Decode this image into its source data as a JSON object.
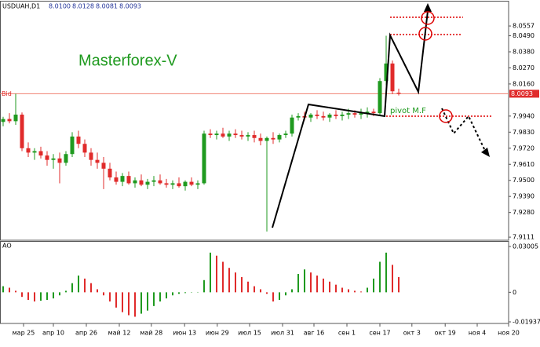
{
  "chart_data": [
    {
      "type": "candlestick",
      "symbol": "USDUAH,D1",
      "header_values": [
        "8.0100",
        "8.0128",
        "8.0081",
        "8.0093"
      ],
      "title": "Masterforex-V",
      "annotation": "pivot M.F",
      "bid_text": "Bid",
      "bid": {
        "value": 8.0093,
        "label": "8.0093"
      },
      "up_color": "#1f9a1f",
      "down_color": "#e02b2b",
      "xlim": [
        0,
        81
      ],
      "ylim": [
        7.909,
        8.0724
      ],
      "yticks": [
        8.0557,
        {
          "value": 8.049,
          "label": "8.0490"
        },
        {
          "value": 8.038,
          "label": "8.0380"
        },
        {
          "value": 8.027,
          "label": "8.0270"
        },
        {
          "value": 8.016,
          "label": "8.0160"
        },
        {
          "value": 7.994,
          "label": "7.9940"
        },
        {
          "value": 7.983,
          "label": "7.9830"
        },
        {
          "value": 7.972,
          "label": "7.9720"
        },
        {
          "value": 7.961,
          "label": "7.9610"
        },
        {
          "value": 7.95,
          "label": "7.9500"
        },
        {
          "value": 7.939,
          "label": "7.9390"
        },
        {
          "value": 7.928,
          "label": "7.9280"
        },
        7.9111
      ],
      "values": [
        [
          7.99,
          7.9935,
          7.987,
          7.992
        ],
        [
          7.992,
          7.996,
          7.989,
          7.9905
        ],
        [
          7.9905,
          8.0093,
          7.988,
          7.995
        ],
        [
          7.995,
          7.9965,
          7.97,
          7.972
        ],
        [
          7.972,
          7.976,
          7.966,
          7.969
        ],
        [
          7.969,
          7.972,
          7.964,
          7.97
        ],
        [
          7.97,
          7.973,
          7.965,
          7.967
        ],
        [
          7.967,
          7.97,
          7.96,
          7.964
        ],
        [
          7.964,
          7.968,
          7.958,
          7.965
        ],
        [
          7.965,
          7.969,
          7.948,
          7.962
        ],
        [
          7.962,
          7.97,
          7.96,
          7.968
        ],
        [
          7.968,
          7.983,
          7.966,
          7.98
        ],
        [
          7.98,
          7.984,
          7.972,
          7.975
        ],
        [
          7.975,
          7.978,
          7.966,
          7.969
        ],
        [
          7.969,
          7.972,
          7.96,
          7.964
        ],
        [
          7.964,
          7.969,
          7.958,
          7.962
        ],
        [
          7.962,
          7.966,
          7.944,
          7.958
        ],
        [
          7.958,
          7.962,
          7.95,
          7.952
        ],
        [
          7.952,
          7.956,
          7.947,
          7.949
        ],
        [
          7.949,
          7.955,
          7.946,
          7.953
        ],
        [
          7.953,
          7.956,
          7.947,
          7.948
        ],
        [
          7.948,
          7.952,
          7.945,
          7.95
        ],
        [
          7.95,
          7.954,
          7.946,
          7.947
        ],
        [
          7.947,
          7.951,
          7.944,
          7.949
        ],
        [
          7.949,
          7.953,
          7.946,
          7.95
        ],
        [
          7.95,
          7.954,
          7.947,
          7.948
        ],
        [
          7.948,
          7.951,
          7.945,
          7.947
        ],
        [
          7.947,
          7.95,
          7.944,
          7.948
        ],
        [
          7.948,
          7.952,
          7.945,
          7.946
        ],
        [
          7.946,
          7.95,
          7.943,
          7.949
        ],
        [
          7.949,
          7.952,
          7.946,
          7.947
        ],
        [
          7.947,
          7.95,
          7.944,
          7.948
        ],
        [
          7.948,
          7.984,
          7.947,
          7.982
        ],
        [
          7.982,
          7.985,
          7.979,
          7.981
        ],
        [
          7.981,
          7.984,
          7.978,
          7.982
        ],
        [
          7.982,
          7.986,
          7.979,
          7.98
        ],
        [
          7.98,
          7.984,
          7.977,
          7.982
        ],
        [
          7.982,
          7.985,
          7.979,
          7.981
        ],
        [
          7.981,
          7.984,
          7.978,
          7.98
        ],
        [
          7.98,
          7.983,
          7.977,
          7.981
        ],
        [
          7.981,
          7.984,
          7.976,
          7.979
        ],
        [
          7.979,
          7.982,
          7.974,
          7.977
        ],
        [
          7.977,
          7.98,
          7.915,
          7.979
        ],
        [
          7.979,
          7.983,
          7.975,
          7.978
        ],
        [
          7.978,
          7.982,
          7.976,
          7.981
        ],
        [
          7.981,
          7.984,
          7.979,
          7.982
        ],
        [
          7.982,
          7.995,
          7.98,
          7.993
        ],
        [
          7.993,
          7.996,
          7.991,
          7.994
        ],
        [
          7.994,
          7.997,
          7.991,
          7.993
        ],
        [
          7.993,
          7.996,
          7.99,
          7.995
        ],
        [
          7.995,
          7.998,
          7.992,
          7.994
        ],
        [
          7.994,
          7.997,
          7.991,
          7.993
        ],
        [
          7.993,
          7.996,
          7.99,
          7.995
        ],
        [
          7.995,
          7.998,
          7.992,
          7.994
        ],
        [
          7.994,
          7.997,
          7.991,
          7.995
        ],
        [
          7.995,
          7.999,
          7.992,
          7.996
        ],
        [
          7.996,
          7.998,
          7.993,
          7.995
        ],
        [
          7.995,
          7.999,
          7.992,
          7.996
        ],
        [
          7.996,
          8.0,
          7.993,
          7.997
        ],
        [
          7.997,
          7.999,
          7.994,
          7.996
        ],
        [
          7.996,
          8.02,
          7.994,
          8.018
        ],
        [
          8.018,
          8.049,
          8.015,
          8.03
        ],
        [
          8.03,
          8.032,
          8.009,
          8.011
        ],
        [
          8.01,
          8.0128,
          8.0081,
          8.0093
        ]
      ]
    },
    {
      "type": "histogram-ao",
      "title": "AO",
      "up_color": "#1f9a1f",
      "down_color": "#e02b2b",
      "xlim": [
        0,
        81
      ],
      "ylim": [
        -0.0204,
        0.0331
      ],
      "yticks": [
        0.03005,
        0,
        -0.01937
      ],
      "xticks": [
        {
          "value": 3.75,
          "label": "мар 25"
        },
        {
          "value": 8.5,
          "label": "апр 10"
        },
        {
          "value": 13.75,
          "label": "апр 26"
        },
        {
          "value": 19,
          "label": "май 12"
        },
        {
          "value": 24.1,
          "label": "май 28"
        },
        {
          "value": 29.4,
          "label": "июн 13"
        },
        {
          "value": 34.6,
          "label": "июн 29"
        },
        {
          "value": 39.75,
          "label": "июл 15"
        },
        {
          "value": 45,
          "label": "июл 31"
        },
        {
          "value": 50,
          "label": "авг 16"
        },
        {
          "value": 55.25,
          "label": "сен 1"
        },
        {
          "value": 60.5,
          "label": "сен 17"
        },
        {
          "value": 65.6,
          "label": "окт 3"
        },
        {
          "value": 70.9,
          "label": "окт 19"
        },
        {
          "value": 76,
          "label": "ноя 4"
        },
        {
          "value": 81,
          "label": "ноя 20"
        }
      ],
      "values": [
        0.004,
        0.003,
        0.001,
        -0.003,
        -0.005,
        -0.006,
        -0.0055,
        -0.005,
        -0.004,
        -0.002,
        0.001,
        0.006,
        0.011,
        0.009,
        0.006,
        0.002,
        -0.002,
        -0.006,
        -0.01,
        -0.013,
        -0.015,
        -0.016,
        -0.014,
        -0.012,
        -0.009,
        -0.006,
        -0.004,
        -0.002,
        -0.001,
        -0.0005,
        -0.0002,
        0.0002,
        0.008,
        0.026,
        0.024,
        0.02,
        0.016,
        0.013,
        0.01,
        0.007,
        0.004,
        0.002,
        -0.001,
        -0.006,
        -0.005,
        -0.002,
        0.002,
        0.012,
        0.015,
        0.013,
        0.011,
        0.009,
        0.007,
        0.005,
        0.003,
        0.002,
        0.001,
        0.0005,
        0.003,
        0.009,
        0.02,
        0.026,
        0.018,
        0.01
      ]
    }
  ]
}
